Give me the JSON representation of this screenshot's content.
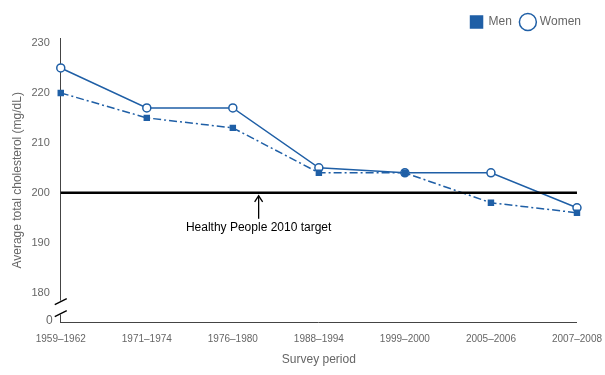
{
  "chart_data": {
    "type": "line",
    "categories": [
      "1959–1962",
      "1971–1974",
      "1976–1980",
      "1988–1994",
      "1999–2000",
      "2005–2006",
      "2007–2008"
    ],
    "series": [
      {
        "name": "Men",
        "color": "#1f5fa6",
        "values": [
          220,
          215,
          213,
          204,
          204,
          198,
          196
        ],
        "marker": "square",
        "line_style": "dashdot"
      },
      {
        "name": "Women",
        "color": "#1f5fa6",
        "values": [
          225,
          217,
          217,
          205,
          204,
          204,
          197
        ],
        "marker": "circle",
        "line_style": "solid"
      }
    ],
    "xlabel": "Survey period",
    "ylabel": "Average total cholesterol (mg/dL)",
    "ylim": [
      174,
      231
    ],
    "yticks": [
      180,
      190,
      200,
      210,
      220,
      230
    ],
    "grid": false,
    "legend": "upper right",
    "reference_line": {
      "y": 200,
      "color": "#000000",
      "label": "Healthy People 2010 target"
    },
    "annotations": [
      {
        "text": "0"
      }
    ]
  }
}
